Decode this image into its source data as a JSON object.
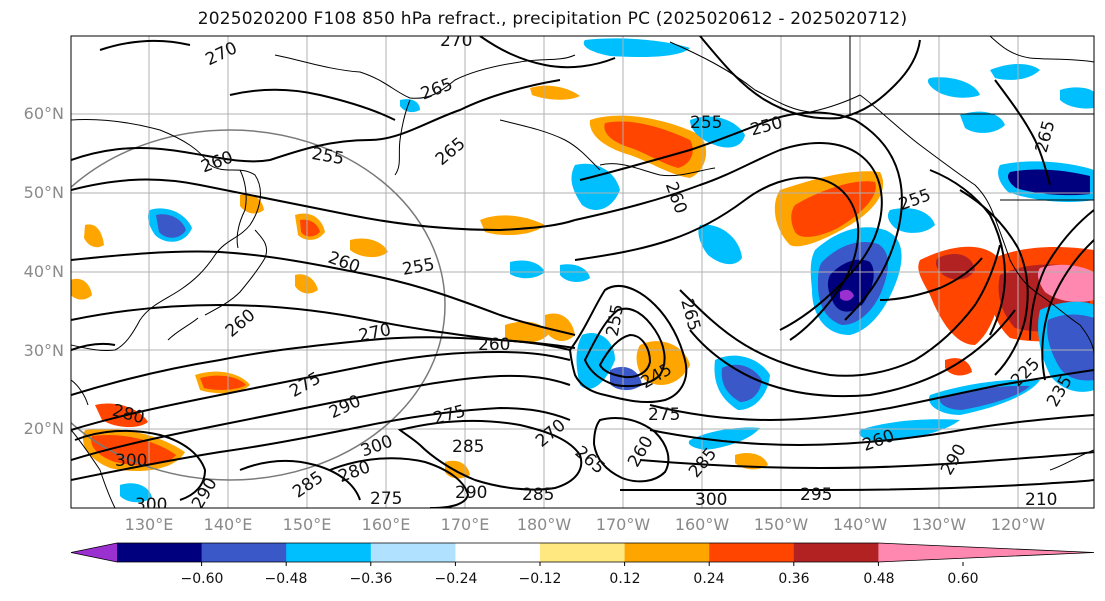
{
  "title": "2025020200 F108 850 hPa refract., precipitation PC (2025020612 - 2025020712)",
  "lat_labels": [
    "60°N",
    "50°N",
    "40°N",
    "30°N",
    "20°N"
  ],
  "lon_labels": [
    "130°E",
    "140°E",
    "150°E",
    "160°E",
    "170°E",
    "180°W",
    "170°W",
    "160°W",
    "150°W",
    "140°W",
    "130°W",
    "120°W"
  ],
  "colorbar": {
    "ticks": [
      "−0.60",
      "−0.48",
      "−0.36",
      "−0.24",
      "−0.12",
      "0.12",
      "0.24",
      "0.36",
      "0.48",
      "0.60"
    ],
    "colors": [
      "#9b30d0",
      "#00007f",
      "#3a58c8",
      "#00bfff",
      "#b0e2ff",
      "#ffffff",
      "#ffe880",
      "#ffa500",
      "#ff4500",
      "#b22222",
      "#ff88b0"
    ]
  },
  "contour_labels": [
    "270",
    "270",
    "265",
    "265",
    "260",
    "255",
    "260",
    "255",
    "260",
    "270",
    "275",
    "290",
    "300",
    "280",
    "300",
    "260",
    "275",
    "285",
    "270",
    "265",
    "260",
    "275",
    "285",
    "290",
    "255",
    "250",
    "260",
    "255",
    "265",
    "295",
    "290",
    "235",
    "225",
    "210",
    "260",
    "300",
    "285",
    "280",
    "285",
    "275",
    "300",
    "290",
    "255",
    "245",
    "265"
  ]
}
